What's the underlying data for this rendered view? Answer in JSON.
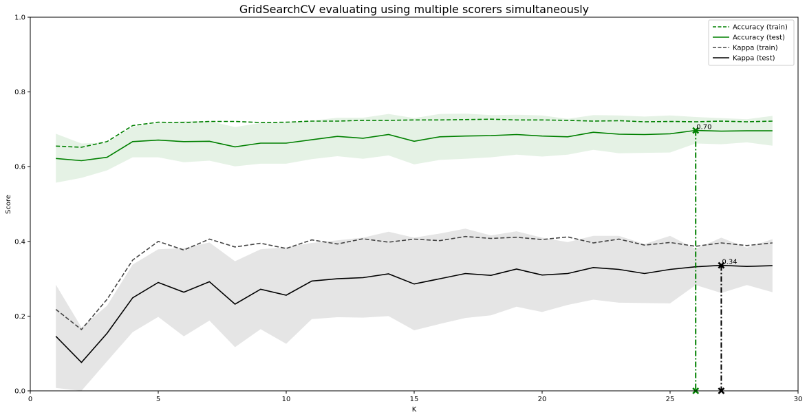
{
  "chart_data": {
    "type": "line",
    "title": "GridSearchCV evaluating using multiple scorers simultaneously",
    "xlabel": "K",
    "ylabel": "Score",
    "xlim": [
      0,
      30
    ],
    "ylim": [
      0,
      1.0
    ],
    "xticks": [
      "0",
      "5",
      "10",
      "15",
      "20",
      "25",
      "30"
    ],
    "yticks": [
      "0.0",
      "0.2",
      "0.4",
      "0.6",
      "0.8",
      "1.0"
    ],
    "legend_position": "top-right",
    "grid": false,
    "x": [
      1,
      2,
      3,
      4,
      5,
      6,
      7,
      8,
      9,
      10,
      11,
      12,
      13,
      14,
      15,
      16,
      17,
      18,
      19,
      20,
      21,
      22,
      23,
      24,
      25,
      26,
      27,
      28,
      29
    ],
    "series": [
      {
        "name": "Accuracy (train)",
        "color": "#008000",
        "style": "dashed",
        "values": [
          0.655,
          0.652,
          0.667,
          0.71,
          0.719,
          0.718,
          0.721,
          0.721,
          0.718,
          0.719,
          0.722,
          0.722,
          0.724,
          0.724,
          0.725,
          0.725,
          0.726,
          0.727,
          0.725,
          0.725,
          0.724,
          0.722,
          0.723,
          0.72,
          0.721,
          0.72,
          0.722,
          0.72,
          0.722
        ]
      },
      {
        "name": "Accuracy (test)",
        "color": "#008000",
        "style": "solid",
        "values": [
          0.622,
          0.616,
          0.625,
          0.667,
          0.671,
          0.667,
          0.668,
          0.653,
          0.663,
          0.663,
          0.672,
          0.681,
          0.676,
          0.686,
          0.668,
          0.68,
          0.682,
          0.683,
          0.686,
          0.682,
          0.68,
          0.692,
          0.687,
          0.686,
          0.688,
          0.697,
          0.695,
          0.696,
          0.696
        ],
        "band_low": [
          0.557,
          0.57,
          0.59,
          0.625,
          0.625,
          0.612,
          0.616,
          0.601,
          0.608,
          0.608,
          0.62,
          0.628,
          0.621,
          0.63,
          0.606,
          0.618,
          0.621,
          0.625,
          0.632,
          0.627,
          0.632,
          0.645,
          0.636,
          0.637,
          0.638,
          0.662,
          0.66,
          0.665,
          0.656
        ],
        "band_high": [
          0.688,
          0.662,
          0.664,
          0.707,
          0.717,
          0.722,
          0.722,
          0.706,
          0.717,
          0.718,
          0.723,
          0.731,
          0.731,
          0.741,
          0.73,
          0.741,
          0.742,
          0.738,
          0.739,
          0.737,
          0.728,
          0.738,
          0.737,
          0.734,
          0.737,
          0.733,
          0.73,
          0.727,
          0.736
        ],
        "best": {
          "x": 26,
          "y": 0.697,
          "label": "0.70"
        }
      },
      {
        "name": "Kappa (train)",
        "color": "#444444",
        "style": "dashed",
        "values": [
          0.218,
          0.164,
          0.245,
          0.35,
          0.4,
          0.377,
          0.406,
          0.385,
          0.395,
          0.381,
          0.404,
          0.393,
          0.407,
          0.398,
          0.406,
          0.402,
          0.413,
          0.408,
          0.411,
          0.405,
          0.412,
          0.396,
          0.406,
          0.39,
          0.397,
          0.387,
          0.396,
          0.389,
          0.396
        ]
      },
      {
        "name": "Kappa (test)",
        "color": "#000000",
        "style": "solid",
        "values": [
          0.146,
          0.076,
          0.154,
          0.249,
          0.29,
          0.264,
          0.292,
          0.232,
          0.272,
          0.256,
          0.294,
          0.3,
          0.303,
          0.313,
          0.286,
          0.3,
          0.314,
          0.309,
          0.326,
          0.31,
          0.314,
          0.33,
          0.325,
          0.314,
          0.325,
          0.332,
          0.336,
          0.333,
          0.335
        ],
        "band_low": [
          0.008,
          0.0,
          0.079,
          0.157,
          0.198,
          0.146,
          0.188,
          0.117,
          0.165,
          0.126,
          0.192,
          0.197,
          0.196,
          0.2,
          0.162,
          0.179,
          0.195,
          0.202,
          0.225,
          0.211,
          0.23,
          0.244,
          0.236,
          0.235,
          0.234,
          0.283,
          0.262,
          0.283,
          0.264
        ],
        "band_high": [
          0.284,
          0.17,
          0.228,
          0.338,
          0.379,
          0.382,
          0.397,
          0.347,
          0.379,
          0.384,
          0.396,
          0.403,
          0.41,
          0.426,
          0.41,
          0.421,
          0.434,
          0.416,
          0.427,
          0.41,
          0.398,
          0.415,
          0.415,
          0.393,
          0.415,
          0.38,
          0.41,
          0.383,
          0.406
        ],
        "best": {
          "x": 27,
          "y": 0.336,
          "label": "0.34"
        }
      }
    ]
  }
}
